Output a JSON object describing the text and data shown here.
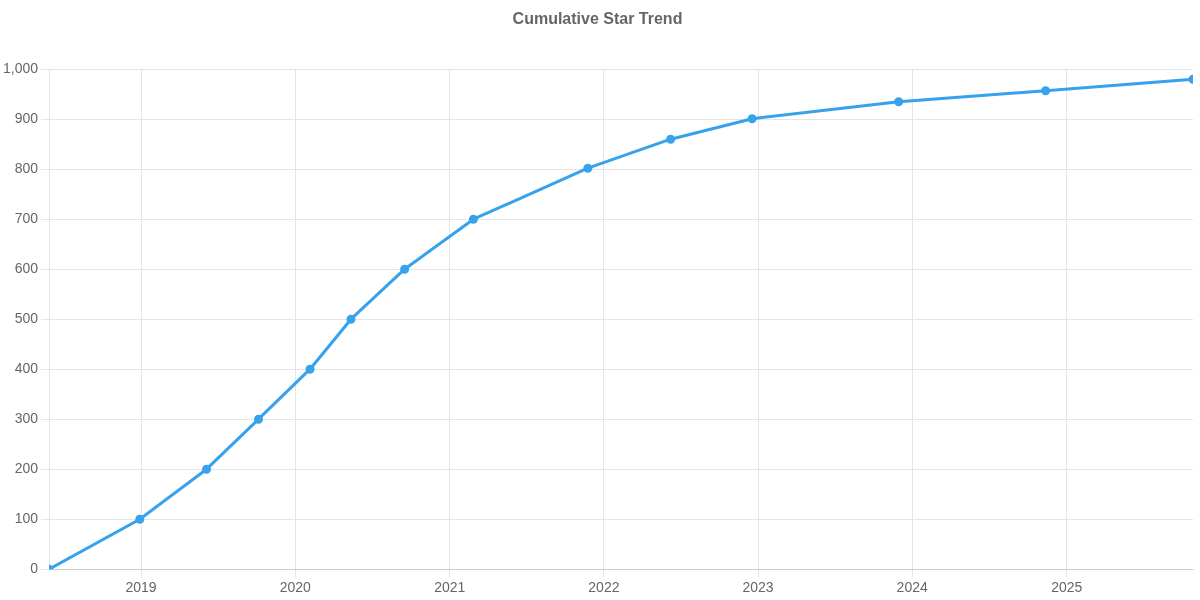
{
  "chart_data": {
    "type": "line",
    "title": "Cumulative Star Trend",
    "x": [
      "2018-05-28",
      "2018-12-29",
      "2019-06-05",
      "2019-10-06",
      "2020-02-05",
      "2020-05-12",
      "2020-09-16",
      "2021-02-26",
      "2021-11-24",
      "2022-06-08",
      "2022-12-18",
      "2023-11-30",
      "2024-11-12",
      "2025-10-27"
    ],
    "series": [
      {
        "color": "#36a2eb",
        "values": [
          0,
          100,
          200,
          300,
          400,
          500,
          600,
          700,
          802,
          860,
          901,
          935,
          957,
          980
        ]
      }
    ],
    "xlim": [
      "2018-05-28",
      "2025-10-27"
    ],
    "xticks": [
      "2019",
      "2020",
      "2021",
      "2022",
      "2023",
      "2024",
      "2025"
    ],
    "ylim": [
      0,
      1000
    ],
    "yticks": [
      0,
      100,
      200,
      300,
      400,
      500,
      600,
      700,
      800,
      900,
      {
        "value": 1000,
        "label": "1,000"
      }
    ],
    "grid": true,
    "marker": "circle",
    "line_style": "solid"
  }
}
